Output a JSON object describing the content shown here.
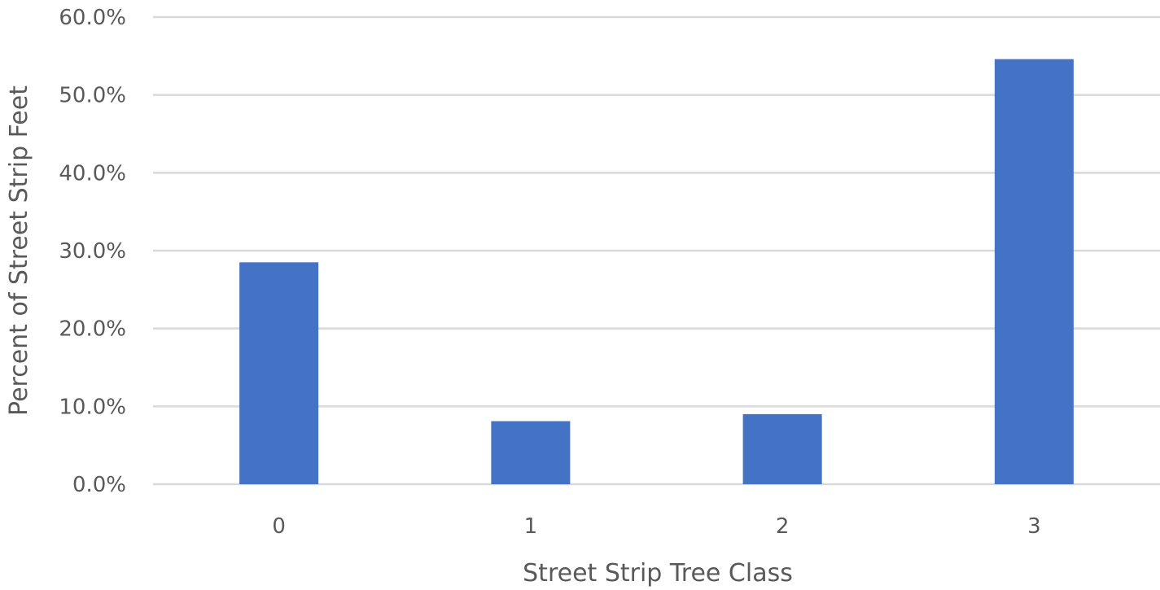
{
  "chart_data": {
    "type": "bar",
    "title": "",
    "xlabel": "Street Strip Tree Class",
    "ylabel": "Percent of Street Strip Feet",
    "categories": [
      "0",
      "1",
      "2",
      "3"
    ],
    "values": [
      28.5,
      8.1,
      9.0,
      54.6
    ],
    "ylim": [
      0,
      60
    ],
    "yticks": [
      0,
      10,
      20,
      30,
      40,
      50,
      60
    ],
    "ytick_labels": [
      "0.0%",
      "10.0%",
      "20.0%",
      "30.0%",
      "40.0%",
      "50.0%",
      "60.0%"
    ],
    "y_unit": "percent",
    "bar_color": "#4472C4",
    "grid": true,
    "legend": "none"
  }
}
